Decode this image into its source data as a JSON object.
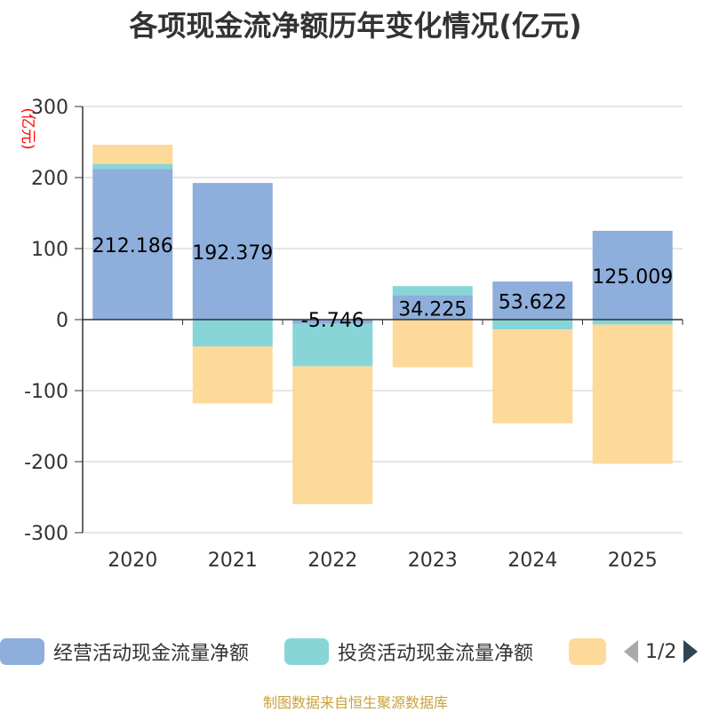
{
  "chart_data": {
    "type": "bar",
    "stacked": true,
    "title": "各项现金流净额历年变化情况(亿元)",
    "ylabel": "(亿元)",
    "xlabel": "",
    "ylim": [
      -300,
      300
    ],
    "yticks": [
      300,
      200,
      100,
      0,
      -100,
      -200,
      -300
    ],
    "grid": true,
    "categories": [
      "2020",
      "2021",
      "2022",
      "2023",
      "2024",
      "2025"
    ],
    "series": [
      {
        "name": "经营活动现金流量净额",
        "color": "#8eaedb",
        "values": [
          212.186,
          192.379,
          -5.746,
          34.225,
          53.622,
          125.009
        ],
        "labels": [
          "212.186",
          "192.379",
          "-5.746",
          "34.225",
          "53.622",
          "125.009"
        ]
      },
      {
        "name": "投资活动现金流量净额",
        "color": "#88d5d8",
        "values": [
          7,
          -38,
          -60,
          13,
          -14,
          -7
        ]
      },
      {
        "name": "",
        "color": "#fdd99a",
        "values": [
          27,
          -80,
          -194,
          -67,
          -132,
          -196
        ]
      }
    ]
  },
  "legend": {
    "pager": "1/2"
  },
  "source": "制图数据来自恒生聚源数据库"
}
